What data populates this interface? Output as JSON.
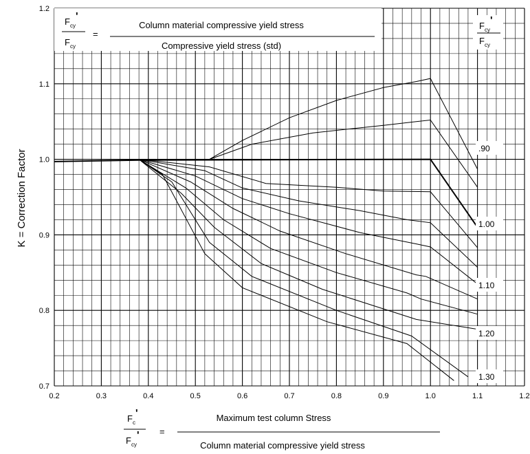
{
  "chart_data": {
    "type": "line",
    "title": "",
    "ylabel": "K = Correction Factor",
    "xlim": [
      0.2,
      1.2
    ],
    "ylim": [
      0.7,
      1.2
    ],
    "x_ticks": [
      "0.2",
      "0.3",
      "0.4",
      "0.5",
      "0.6",
      "0.7",
      "0.8",
      "0.9",
      "1.0",
      "1.1",
      "1.2"
    ],
    "y_ticks": [
      "0.7",
      "0.8",
      "0.9",
      "1.0",
      "1.1",
      "1.2"
    ],
    "grid": true,
    "top_formula": {
      "numerator": "Column material compressive yield stress",
      "denominator": "Compressive yield stress (std)",
      "equals": "=",
      "symbol": "F",
      "sub": "cy",
      "prime": "'"
    },
    "bottom_formula": {
      "numerator": "Maximum test column Stress",
      "denominator": "Column material compressive yield stress",
      "equals": "=",
      "num_symbol": "F",
      "num_sub": "c",
      "den_symbol": "F",
      "den_sub": "cy",
      "prime": "'"
    },
    "legend_header": {
      "symbol": "F",
      "sub": "cy",
      "prime": "'"
    },
    "curve_labels": [
      ".90",
      "1.00",
      "1.10",
      "1.20",
      "1.30"
    ],
    "series": [
      {
        "x": [
          0.2,
          0.38,
          0.53,
          0.6,
          0.7,
          0.8,
          0.9,
          0.97,
          1.0,
          1.1
        ],
        "y": [
          0.997,
          0.999,
          1.0,
          1.025,
          1.055,
          1.078,
          1.095,
          1.103,
          1.107,
          0.987
        ]
      },
      {
        "x": [
          0.2,
          0.38,
          0.53,
          0.62,
          0.75,
          0.9,
          0.97,
          1.0,
          1.1
        ],
        "y": [
          0.997,
          0.999,
          1.0,
          1.02,
          1.035,
          1.045,
          1.05,
          1.052,
          0.963
        ]
      },
      {
        "x": [
          0.2,
          0.38,
          1.0,
          1.1
        ],
        "y": [
          0.997,
          0.999,
          1.0,
          0.91
        ]
      },
      {
        "x": [
          0.38,
          0.53,
          0.65,
          0.8,
          0.9,
          1.0,
          1.1
        ],
        "y": [
          1.0,
          0.99,
          0.968,
          0.963,
          0.958,
          0.957,
          0.883
        ]
      },
      {
        "x": [
          0.38,
          0.52,
          0.6,
          0.72,
          0.85,
          0.95,
          1.0,
          1.1
        ],
        "y": [
          1.0,
          0.985,
          0.962,
          0.945,
          0.932,
          0.92,
          0.916,
          0.857
        ]
      },
      {
        "x": [
          0.38,
          0.5,
          0.6,
          0.7,
          0.85,
          0.97,
          1.0,
          1.1
        ],
        "y": [
          1.0,
          0.978,
          0.948,
          0.928,
          0.903,
          0.888,
          0.884,
          0.835
        ]
      },
      {
        "x": [
          0.38,
          0.49,
          0.58,
          0.68,
          0.82,
          0.97,
          0.99,
          1.1
        ],
        "y": [
          1.0,
          0.97,
          0.935,
          0.905,
          0.875,
          0.847,
          0.845,
          0.815
        ]
      },
      {
        "x": [
          0.38,
          0.48,
          0.56,
          0.66,
          0.8,
          0.95,
          0.98,
          1.1
        ],
        "y": [
          1.0,
          0.962,
          0.92,
          0.882,
          0.85,
          0.823,
          0.815,
          0.795
        ]
      },
      {
        "x": [
          0.38,
          0.47,
          0.54,
          0.64,
          0.77,
          0.97,
          1.1
        ],
        "y": [
          1.0,
          0.955,
          0.91,
          0.862,
          0.828,
          0.788,
          0.775
        ]
      },
      {
        "x": [
          0.38,
          0.45,
          0.53,
          0.62,
          0.8,
          0.96,
          1.08
        ],
        "y": [
          1.0,
          0.97,
          0.89,
          0.845,
          0.8,
          0.766,
          0.712
        ]
      },
      {
        "x": [
          0.38,
          0.43,
          0.52,
          0.6,
          0.78,
          0.95,
          1.05
        ],
        "y": [
          1.0,
          0.98,
          0.875,
          0.83,
          0.785,
          0.756,
          0.707
        ]
      }
    ]
  }
}
